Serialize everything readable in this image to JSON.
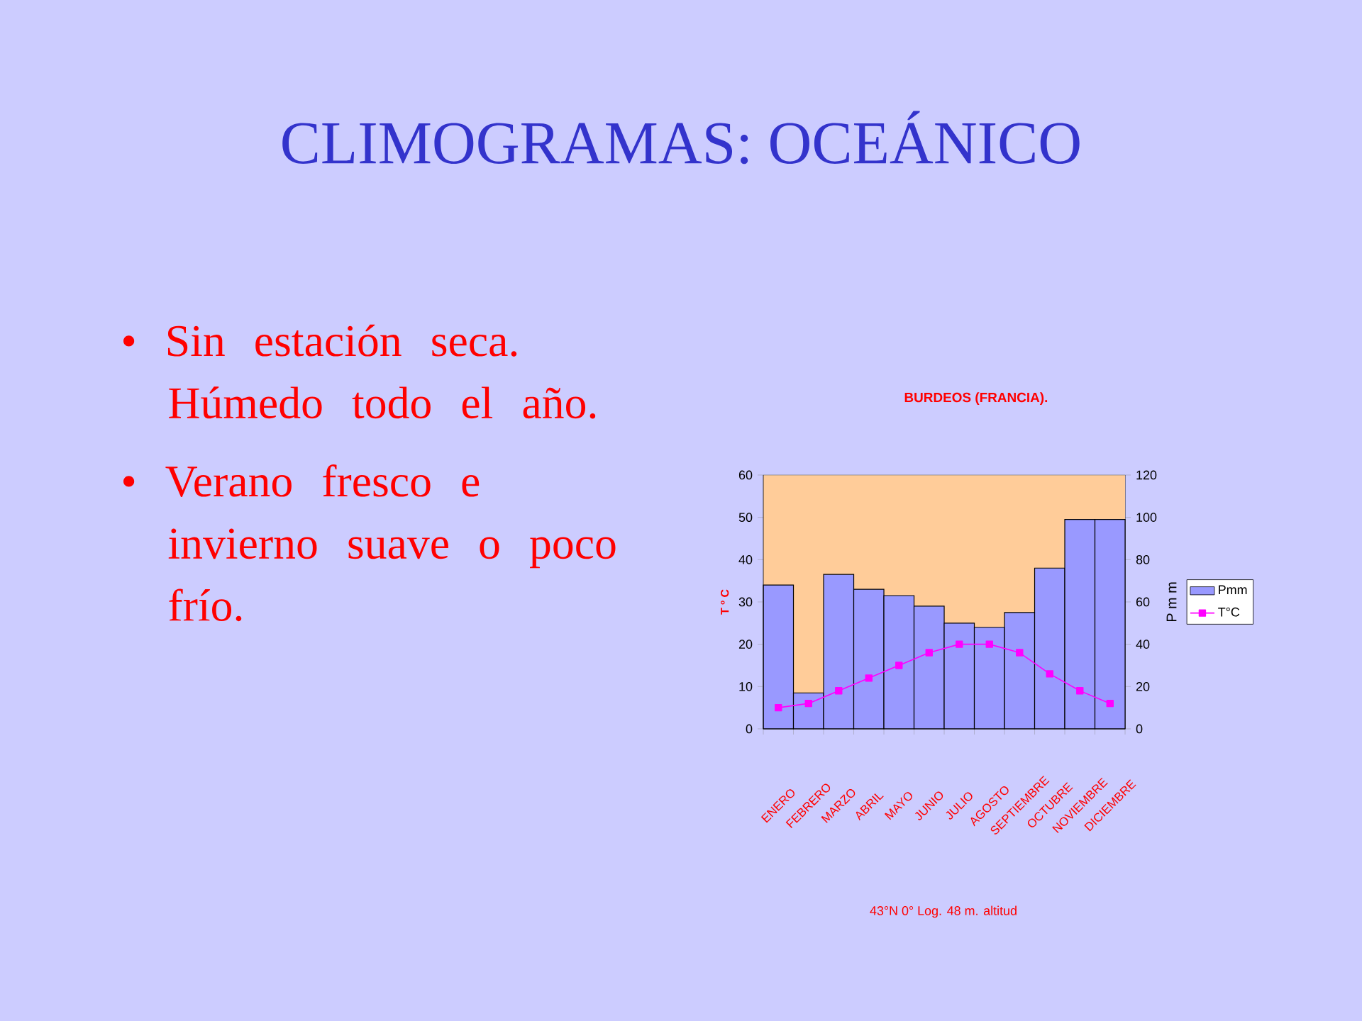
{
  "chart_data": {
    "type": "bar",
    "title": "CLIMOGRAMAS: OCEÁNICO",
    "subtitle": "BURDEOS (FRANCIA).",
    "ylabel": "T º C",
    "y2label": "P m m",
    "annotations": [
      "• Sin estación seca. Húmedo todo el año.",
      "• Verano fresco e invierno suave o poco frío.",
      "43°N 0° Log. 48 m. altitud"
    ],
    "categories": [
      "ENERO",
      "FEBRERO",
      "MARZO",
      "ABRIL",
      "MAYO",
      "JUNIO",
      "JULIO",
      "AGOSTO",
      "SEPTIEMBRE",
      "OCTUBRE",
      "NOVIEMBRE",
      "DICIEMBRE"
    ],
    "series": [
      {
        "name": "Pmm",
        "axis": "y2",
        "color": "#9999ff",
        "values": [
          68,
          17,
          73,
          66,
          63,
          58,
          50,
          48,
          55,
          76,
          99,
          99
        ]
      },
      {
        "name": "T°C",
        "type": "line",
        "color": "#ff00ff",
        "values": [
          5,
          6,
          9,
          12,
          15,
          18,
          20,
          20,
          18,
          13,
          9,
          6
        ]
      }
    ],
    "bands": [
      {
        "axis": "y2",
        "from": 0,
        "to": 120,
        "color": "#ffcc99"
      }
    ],
    "ylim": [
      0,
      60
    ],
    "yticks": [
      0,
      10,
      20,
      30,
      40,
      50,
      60
    ],
    "y2lim": [
      0,
      120
    ],
    "y2ticks": [
      0,
      20,
      40,
      60,
      80,
      100,
      120
    ],
    "legend": "right",
    "marker": "square",
    "line_style": "solid"
  }
}
